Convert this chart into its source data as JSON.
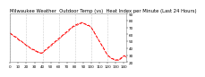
{
  "title": "Milwaukee Weather  Outdoor Temp (vs)  Heat Index per Minute (Last 24 Hours)",
  "line_color": "#ff0000",
  "background_color": "#ffffff",
  "grid_color": "#999999",
  "ylim": [
    20,
    90
  ],
  "yticks": [
    20,
    30,
    40,
    50,
    60,
    70,
    80,
    90
  ],
  "num_points": 144,
  "y_values": [
    62,
    61,
    60,
    59,
    58,
    57,
    57,
    56,
    55,
    54,
    53,
    52,
    51,
    51,
    50,
    49,
    48,
    47,
    46,
    45,
    44,
    44,
    43,
    42,
    41,
    40,
    39,
    39,
    38,
    38,
    37,
    36,
    36,
    35,
    35,
    34,
    34,
    33,
    33,
    33,
    34,
    35,
    36,
    37,
    38,
    39,
    40,
    41,
    42,
    43,
    44,
    45,
    46,
    47,
    48,
    49,
    50,
    51,
    52,
    53,
    54,
    55,
    56,
    57,
    58,
    59,
    60,
    61,
    62,
    63,
    64,
    65,
    66,
    67,
    68,
    69,
    70,
    71,
    72,
    72,
    73,
    74,
    74,
    75,
    75,
    76,
    76,
    76,
    77,
    77,
    76,
    76,
    75,
    75,
    74,
    74,
    73,
    73,
    72,
    71,
    70,
    68,
    66,
    64,
    62,
    60,
    58,
    56,
    54,
    52,
    50,
    48,
    46,
    44,
    42,
    40,
    38,
    36,
    34,
    32,
    30,
    29,
    28,
    27,
    26,
    25,
    25,
    24,
    24,
    23,
    23,
    23,
    23,
    23,
    24,
    24,
    25,
    26,
    27,
    28,
    29,
    29,
    28,
    27
  ],
  "title_fontsize": 3.8,
  "tick_fontsize": 3.0,
  "linewidth": 0.7,
  "linestyle": "--",
  "marker": ".",
  "markersize": 0.8,
  "grid_positions": [
    0,
    20,
    40,
    60,
    80,
    100,
    120,
    143
  ],
  "xtick_labels": [
    "0",
    "10",
    "20",
    "30",
    "40",
    "50",
    "60",
    "70",
    "80",
    "90",
    "100",
    "110",
    "120",
    "130",
    "140"
  ],
  "xtick_positions": [
    0,
    10,
    20,
    30,
    40,
    50,
    60,
    70,
    80,
    90,
    100,
    110,
    120,
    130,
    140
  ]
}
